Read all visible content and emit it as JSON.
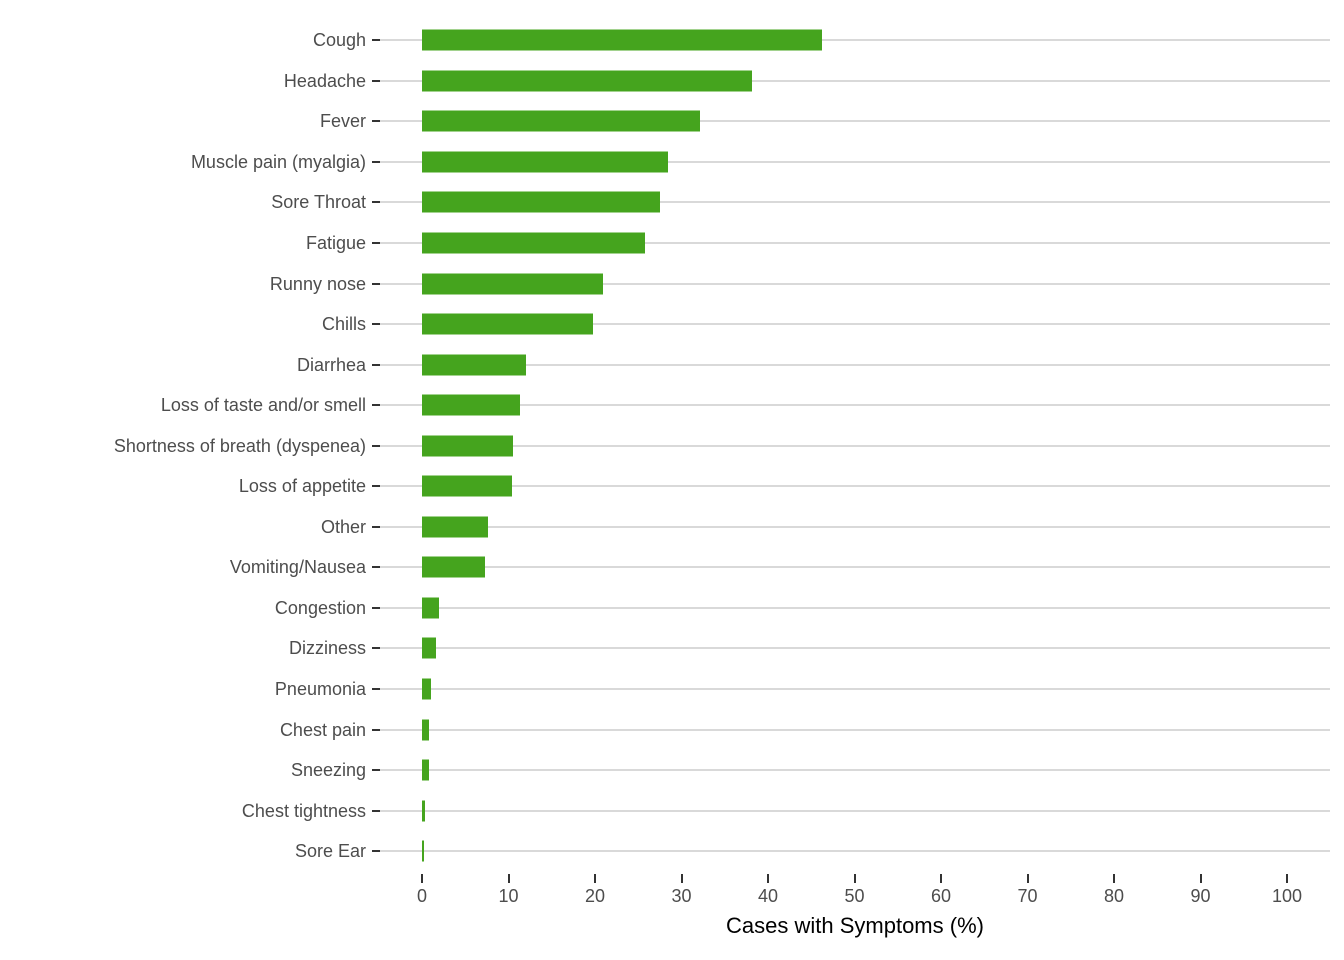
{
  "chart_data": {
    "type": "bar",
    "orientation": "horizontal",
    "title": "",
    "xlabel": "Cases with Symptoms (%)",
    "ylabel": "",
    "xlim": [
      0,
      100
    ],
    "x_ticks": [
      0,
      10,
      20,
      30,
      40,
      50,
      60,
      70,
      80,
      90,
      100
    ],
    "categories": [
      "Cough",
      "Headache",
      "Fever",
      "Muscle pain (myalgia)",
      "Sore Throat",
      "Fatigue",
      "Runny nose",
      "Chills",
      "Diarrhea",
      "Loss of taste and/or smell",
      "Shortness of breath (dyspenea)",
      "Loss of appetite",
      "Other",
      "Vomiting/Nausea",
      "Congestion",
      "Dizziness",
      "Pneumonia",
      "Chest pain",
      "Sneezing",
      "Chest tightness",
      "Sore Ear"
    ],
    "values": [
      46.2,
      38.1,
      32.1,
      28.4,
      27.5,
      25.8,
      20.9,
      19.8,
      12.0,
      11.3,
      10.5,
      10.4,
      7.6,
      7.3,
      2.0,
      1.6,
      1.0,
      0.85,
      0.75,
      0.3,
      0.2
    ],
    "bar_color": "#45a41e",
    "gridline_color": "#d9d9d9",
    "axis_tick_color": "#333333",
    "category_label_color": "#4d4d4d",
    "axis_title_color": "#000000",
    "grid": "horizontal major gridlines only",
    "legend": "none"
  }
}
